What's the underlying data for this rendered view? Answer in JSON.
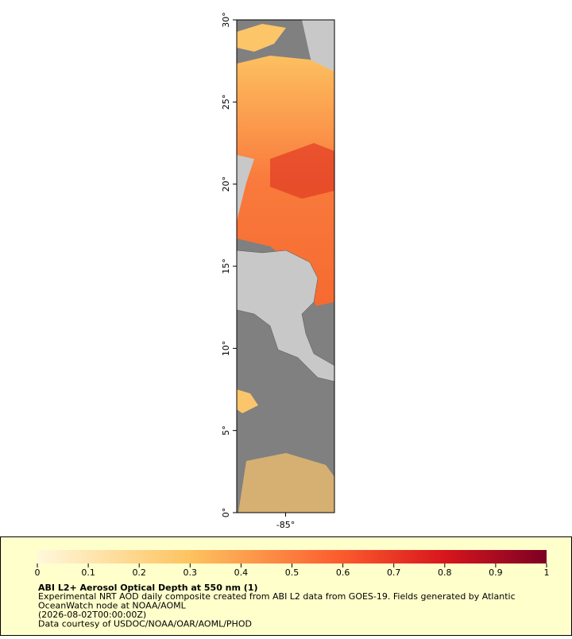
{
  "map": {
    "xlim": [
      -88,
      -82
    ],
    "ylim": [
      0,
      30
    ],
    "yticks": [
      {
        "value": 0,
        "label": "0°"
      },
      {
        "value": 5,
        "label": "5°"
      },
      {
        "value": 10,
        "label": "10°"
      },
      {
        "value": 15,
        "label": "15°"
      },
      {
        "value": 20,
        "label": "20°"
      },
      {
        "value": 25,
        "label": "25°"
      },
      {
        "value": 30,
        "label": "30°"
      }
    ],
    "xticks": [
      {
        "value": -85,
        "label": "-85°"
      }
    ]
  },
  "legend": {
    "colorbar_lim": [
      0,
      1
    ],
    "colorbar_ticks": [
      0,
      0.1,
      0.2,
      0.3,
      0.4,
      0.5,
      0.6,
      0.7,
      0.8,
      0.9,
      1
    ],
    "title": "ABI L2+ Aerosol Optical Depth at 550 nm (1)",
    "lines": [
      "Experimental NRT AOD daily composite created from ABI L2 data from GOES-19. Fields generated by Atlantic",
      "OceanWatch node at NOAA/AOML",
      "(2026-08-02T00:00:00Z)",
      "Data courtesy of USDOC/NOAA/OAR/AOML/PHOD"
    ]
  }
}
